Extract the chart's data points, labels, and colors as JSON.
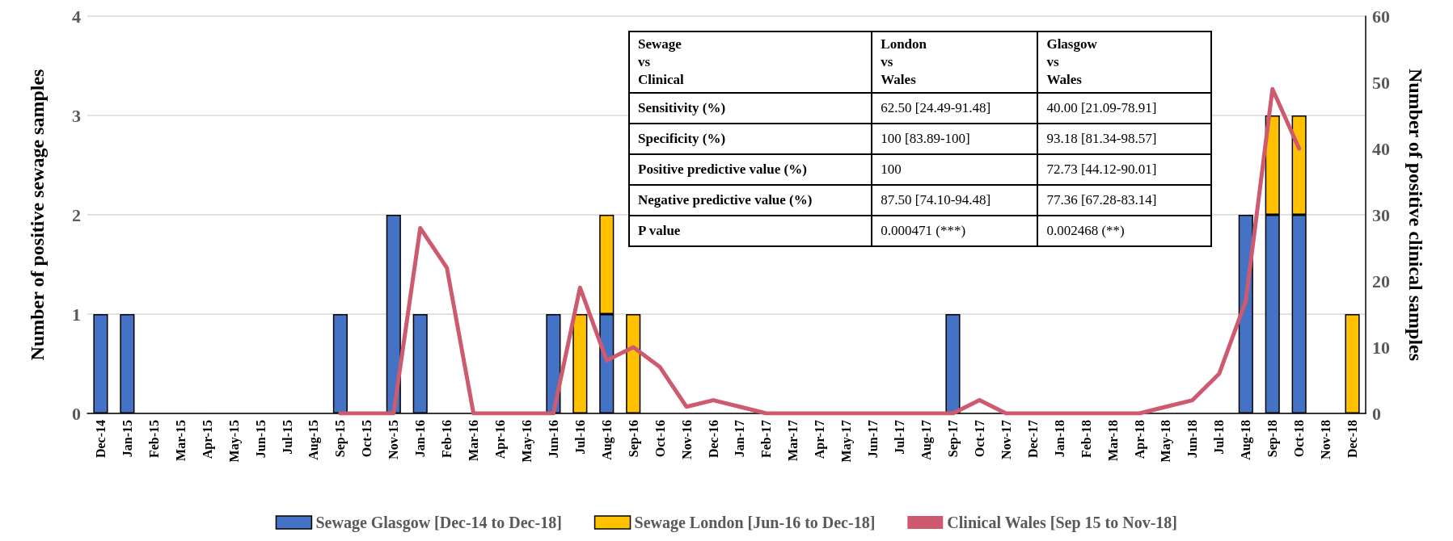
{
  "chart_data": {
    "type": "bar",
    "stacked": true,
    "ylabel": "Number of positive sewage samples",
    "y2label": "Number of positive clinical samples",
    "categories": [
      "Dec-14",
      "Jan-15",
      "Feb-15",
      "Mar-15",
      "Apr-15",
      "May-15",
      "Jun-15",
      "Jul-15",
      "Aug-15",
      "Sep-15",
      "Oct-15",
      "Nov-15",
      "Jan-16",
      "Feb-16",
      "Mar-16",
      "Apr-16",
      "May-16",
      "Jun-16",
      "Jul-16",
      "Aug-16",
      "Sep-16",
      "Oct-16",
      "Nov-16",
      "Dec-16",
      "Jan-17",
      "Feb-17",
      "Mar-17",
      "Apr-17",
      "May-17",
      "Jun-17",
      "Jul-17",
      "Aug-17",
      "Sep-17",
      "Oct-17",
      "Nov-17",
      "Dec-17",
      "Jan-18",
      "Feb-18",
      "Mar-18",
      "Apr-18",
      "May-18",
      "Jun-18",
      "Jul-18",
      "Aug-18",
      "Sep-18",
      "Oct-18",
      "Nov-18",
      "Dec-18"
    ],
    "series": [
      {
        "name": "Sewage Glasgow [Dec-14 to Dec-18]",
        "color": "#4472c4",
        "values": [
          1,
          1,
          null,
          null,
          null,
          null,
          null,
          null,
          null,
          1,
          null,
          2,
          1,
          null,
          null,
          null,
          null,
          1,
          null,
          1,
          null,
          null,
          null,
          null,
          null,
          null,
          null,
          null,
          null,
          null,
          null,
          null,
          1,
          null,
          null,
          null,
          null,
          null,
          null,
          null,
          null,
          null,
          null,
          2,
          2,
          2,
          null,
          null
        ]
      },
      {
        "name": "Sewage London [Jun-16 to Dec-18]",
        "color": "#ffc000",
        "values": [
          null,
          null,
          null,
          null,
          null,
          null,
          null,
          null,
          null,
          null,
          null,
          null,
          null,
          null,
          null,
          null,
          null,
          null,
          1,
          1,
          1,
          null,
          null,
          null,
          null,
          null,
          null,
          null,
          null,
          null,
          null,
          null,
          null,
          null,
          null,
          null,
          null,
          null,
          null,
          null,
          null,
          null,
          null,
          null,
          1,
          1,
          null,
          1
        ]
      },
      {
        "name": "Clinical Wales [Sep 15 to Nov-18]",
        "type": "line",
        "axis": "y2",
        "color": "#cd5a6e",
        "values": [
          null,
          null,
          null,
          null,
          null,
          null,
          null,
          null,
          null,
          0,
          0,
          0,
          28,
          22,
          0,
          0,
          0,
          0,
          19,
          8,
          10,
          7,
          1,
          2,
          1,
          0,
          0,
          0,
          0,
          0,
          0,
          0,
          0,
          2,
          0,
          0,
          0,
          0,
          0,
          0,
          1,
          2,
          6,
          17,
          49,
          40,
          null,
          null
        ]
      }
    ],
    "ylim": [
      0,
      4
    ],
    "yticks": [
      0,
      1,
      2,
      3,
      4
    ],
    "y2lim": [
      0,
      60
    ],
    "y2ticks": [
      0,
      10,
      20,
      30,
      40,
      50,
      60
    ],
    "grid": "y",
    "legend": "bottom",
    "marker": "none",
    "annotations": [
      "Sewage\nvs\nClinical",
      "London\nvs\nWales",
      "Glasgow\nvs\nWales",
      "Sensitivity (%)",
      "62.50 [24.49-91.48]",
      "40.00 [21.09-78.91]",
      "Specificity (%)",
      "100 [83.89-100]",
      "93.18 [81.34-98.57]",
      "Positive predictive value (%)",
      "100",
      "72.73 [44.12-90.01]",
      "Negative predictive value (%)",
      "87.50 [74.10-94.48]",
      "77.36 [67.28-83.14]",
      "P value",
      "0.000471 (***)",
      "0.002468 (**)"
    ]
  }
}
